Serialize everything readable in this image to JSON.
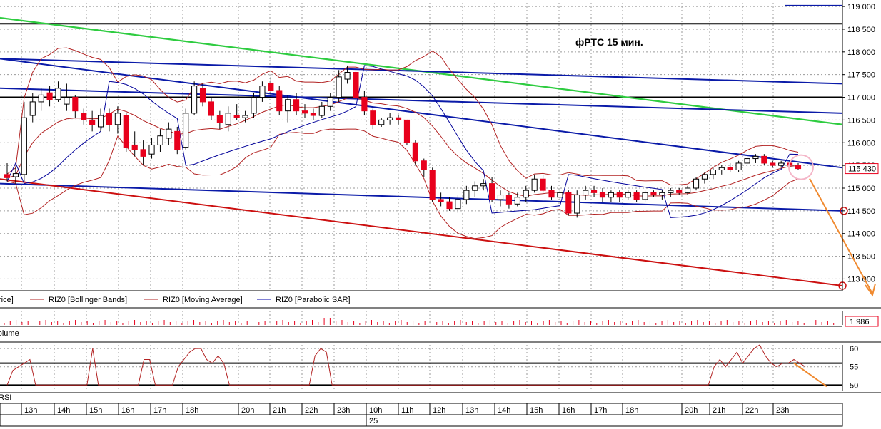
{
  "chart_data": {
    "type": "candlestick",
    "title": "фРТС   15 мин.",
    "price_axis": {
      "ticks": [
        "119 000",
        "118 500",
        "118 000",
        "117 500",
        "117 000",
        "116 500",
        "116 000",
        "115 500",
        "115 000",
        "114 500",
        "114 000",
        "113 500",
        "113 000"
      ],
      "tick_values": [
        119000,
        118500,
        118000,
        117500,
        117000,
        116500,
        116000,
        115500,
        115000,
        114500,
        114000,
        113500,
        113000
      ],
      "ylim": [
        112740,
        119080
      ],
      "last_price_label": "115 430",
      "last_price": 115430
    },
    "legend": [
      {
        "label": "Price",
        "color": "#000000"
      },
      {
        "label": "RIZ0 [Bollinger Bands]",
        "color": "#b22222"
      },
      {
        "label": "RIZ0 [Moving Average]",
        "color": "#b22222"
      },
      {
        "label": "RIZ0 [Parabolic SAR]",
        "color": "#0000aa"
      }
    ],
    "candles": [
      {
        "o": 115300,
        "h": 115550,
        "l": 115150,
        "c": 115230
      },
      {
        "o": 115250,
        "h": 115450,
        "l": 115100,
        "c": 115320
      },
      {
        "o": 115300,
        "h": 116900,
        "l": 115150,
        "c": 116550
      },
      {
        "o": 116600,
        "h": 117100,
        "l": 116450,
        "c": 116900
      },
      {
        "o": 116900,
        "h": 117200,
        "l": 116700,
        "c": 117050
      },
      {
        "o": 117100,
        "h": 117250,
        "l": 116800,
        "c": 116950
      },
      {
        "o": 116950,
        "h": 117350,
        "l": 116900,
        "c": 117200
      },
      {
        "o": 116850,
        "h": 117300,
        "l": 116700,
        "c": 117000
      },
      {
        "o": 117000,
        "h": 117050,
        "l": 116550,
        "c": 116700
      },
      {
        "o": 116650,
        "h": 116750,
        "l": 116400,
        "c": 116500
      },
      {
        "o": 116500,
        "h": 116700,
        "l": 116250,
        "c": 116400
      },
      {
        "o": 116350,
        "h": 116750,
        "l": 116250,
        "c": 116600
      },
      {
        "o": 116650,
        "h": 116750,
        "l": 116250,
        "c": 116400
      },
      {
        "o": 116400,
        "h": 116800,
        "l": 116200,
        "c": 116650
      },
      {
        "o": 116600,
        "h": 116650,
        "l": 115800,
        "c": 115900
      },
      {
        "o": 115950,
        "h": 116250,
        "l": 115700,
        "c": 115850
      },
      {
        "o": 115850,
        "h": 116050,
        "l": 115500,
        "c": 115700
      },
      {
        "o": 115750,
        "h": 116100,
        "l": 115650,
        "c": 115950
      },
      {
        "o": 115950,
        "h": 116300,
        "l": 115800,
        "c": 116150
      },
      {
        "o": 116100,
        "h": 116450,
        "l": 115950,
        "c": 116300
      },
      {
        "o": 116250,
        "h": 116350,
        "l": 115750,
        "c": 115850
      },
      {
        "o": 115900,
        "h": 116750,
        "l": 115850,
        "c": 116650
      },
      {
        "o": 116650,
        "h": 117350,
        "l": 116600,
        "c": 117250
      },
      {
        "o": 117200,
        "h": 117300,
        "l": 116800,
        "c": 116900
      },
      {
        "o": 116900,
        "h": 117000,
        "l": 116500,
        "c": 116600
      },
      {
        "o": 116600,
        "h": 116700,
        "l": 116300,
        "c": 116450
      },
      {
        "o": 116400,
        "h": 116800,
        "l": 116250,
        "c": 116650
      },
      {
        "o": 116600,
        "h": 116850,
        "l": 116500,
        "c": 116550
      },
      {
        "o": 116550,
        "h": 116700,
        "l": 116450,
        "c": 116600
      },
      {
        "o": 116650,
        "h": 117100,
        "l": 116550,
        "c": 117000
      },
      {
        "o": 117000,
        "h": 117350,
        "l": 116900,
        "c": 117250
      },
      {
        "o": 117300,
        "h": 117450,
        "l": 117000,
        "c": 117150
      },
      {
        "o": 117150,
        "h": 117250,
        "l": 116600,
        "c": 116700
      },
      {
        "o": 116700,
        "h": 117050,
        "l": 116450,
        "c": 116950
      },
      {
        "o": 116950,
        "h": 117100,
        "l": 116600,
        "c": 116700
      },
      {
        "o": 116700,
        "h": 116850,
        "l": 116550,
        "c": 116650
      },
      {
        "o": 116650,
        "h": 116750,
        "l": 116500,
        "c": 116600
      },
      {
        "o": 116600,
        "h": 116900,
        "l": 116550,
        "c": 116800
      },
      {
        "o": 116800,
        "h": 117100,
        "l": 116700,
        "c": 117000
      },
      {
        "o": 117000,
        "h": 117600,
        "l": 116900,
        "c": 117450
      },
      {
        "o": 117400,
        "h": 117700,
        "l": 117300,
        "c": 117550
      },
      {
        "o": 117550,
        "h": 117650,
        "l": 116900,
        "c": 117000
      },
      {
        "o": 117000,
        "h": 117150,
        "l": 116600,
        "c": 116700
      },
      {
        "o": 116700,
        "h": 116750,
        "l": 116300,
        "c": 116400
      },
      {
        "o": 116400,
        "h": 116550,
        "l": 116350,
        "c": 116500
      },
      {
        "o": 116500,
        "h": 116650,
        "l": 116400,
        "c": 116550
      },
      {
        "o": 116550,
        "h": 116600,
        "l": 116400,
        "c": 116500
      },
      {
        "o": 116500,
        "h": 116500,
        "l": 115950,
        "c": 116000
      },
      {
        "o": 116000,
        "h": 116050,
        "l": 115500,
        "c": 115600
      },
      {
        "o": 115600,
        "h": 115650,
        "l": 115250,
        "c": 115400
      },
      {
        "o": 115400,
        "h": 115450,
        "l": 114700,
        "c": 114750
      },
      {
        "o": 114750,
        "h": 114900,
        "l": 114600,
        "c": 114700
      },
      {
        "o": 114700,
        "h": 114800,
        "l": 114500,
        "c": 114550
      },
      {
        "o": 114550,
        "h": 114850,
        "l": 114450,
        "c": 114750
      },
      {
        "o": 114750,
        "h": 115050,
        "l": 114650,
        "c": 114950
      },
      {
        "o": 114950,
        "h": 115150,
        "l": 114800,
        "c": 115050
      },
      {
        "o": 115050,
        "h": 115200,
        "l": 114950,
        "c": 115100
      },
      {
        "o": 115100,
        "h": 115250,
        "l": 114700,
        "c": 114750
      },
      {
        "o": 114750,
        "h": 114950,
        "l": 114600,
        "c": 114850
      },
      {
        "o": 114850,
        "h": 114900,
        "l": 114550,
        "c": 114650
      },
      {
        "o": 114650,
        "h": 114900,
        "l": 114600,
        "c": 114800
      },
      {
        "o": 114800,
        "h": 115050,
        "l": 114700,
        "c": 114950
      },
      {
        "o": 114950,
        "h": 115300,
        "l": 114900,
        "c": 115200
      },
      {
        "o": 115200,
        "h": 115300,
        "l": 114900,
        "c": 114950
      },
      {
        "o": 114950,
        "h": 115050,
        "l": 114750,
        "c": 114800
      },
      {
        "o": 114800,
        "h": 114950,
        "l": 114750,
        "c": 114900
      },
      {
        "o": 114900,
        "h": 114950,
        "l": 114400,
        "c": 114450
      },
      {
        "o": 114450,
        "h": 114950,
        "l": 114350,
        "c": 114850
      },
      {
        "o": 114850,
        "h": 115050,
        "l": 114750,
        "c": 114950
      },
      {
        "o": 114950,
        "h": 115050,
        "l": 114800,
        "c": 114900
      },
      {
        "o": 114900,
        "h": 115000,
        "l": 114700,
        "c": 114800
      },
      {
        "o": 114800,
        "h": 114950,
        "l": 114700,
        "c": 114900
      },
      {
        "o": 114900,
        "h": 114950,
        "l": 114700,
        "c": 114800
      },
      {
        "o": 114800,
        "h": 114950,
        "l": 114750,
        "c": 114900
      },
      {
        "o": 114900,
        "h": 114950,
        "l": 114700,
        "c": 114750
      },
      {
        "o": 114750,
        "h": 114950,
        "l": 114700,
        "c": 114900
      },
      {
        "o": 114900,
        "h": 114950,
        "l": 114800,
        "c": 114850
      },
      {
        "o": 114850,
        "h": 114950,
        "l": 114750,
        "c": 114900
      },
      {
        "o": 114900,
        "h": 115000,
        "l": 114800,
        "c": 114950
      },
      {
        "o": 114950,
        "h": 115000,
        "l": 114850,
        "c": 114900
      },
      {
        "o": 114900,
        "h": 115050,
        "l": 114850,
        "c": 115000
      },
      {
        "o": 115000,
        "h": 115250,
        "l": 114950,
        "c": 115200
      },
      {
        "o": 115200,
        "h": 115350,
        "l": 115100,
        "c": 115300
      },
      {
        "o": 115300,
        "h": 115450,
        "l": 115200,
        "c": 115400
      },
      {
        "o": 115400,
        "h": 115500,
        "l": 115300,
        "c": 115450
      },
      {
        "o": 115450,
        "h": 115550,
        "l": 115350,
        "c": 115400
      },
      {
        "o": 115400,
        "h": 115600,
        "l": 115350,
        "c": 115550
      },
      {
        "o": 115550,
        "h": 115700,
        "l": 115450,
        "c": 115650
      },
      {
        "o": 115650,
        "h": 115750,
        "l": 115550,
        "c": 115700
      },
      {
        "o": 115700,
        "h": 115750,
        "l": 115500,
        "c": 115550
      },
      {
        "o": 115550,
        "h": 115600,
        "l": 115450,
        "c": 115500
      },
      {
        "o": 115500,
        "h": 115600,
        "l": 115450,
        "c": 115550
      },
      {
        "o": 115550,
        "h": 115600,
        "l": 115450,
        "c": 115500
      },
      {
        "o": 115500,
        "h": 115550,
        "l": 115400,
        "c": 115430
      }
    ],
    "trendlines_blue": [
      {
        "from": [
          0,
          117850
        ],
        "to": [
          "end",
          117300
        ]
      },
      {
        "from": [
          0,
          117200
        ],
        "to": [
          "end",
          116650
        ]
      },
      {
        "from": [
          0,
          117850
        ],
        "to": [
          "end",
          115450
        ]
      },
      {
        "from": [
          0,
          115100
        ],
        "to": [
          "end",
          114500
        ]
      },
      {
        "from": [
          "top-right-start",
          119050
        ],
        "to": [
          "end",
          119050
        ]
      }
    ],
    "trendline_green": {
      "from": [
        0,
        118750
      ],
      "to": [
        "end",
        116400
      ]
    },
    "trendline_red": {
      "from": [
        0,
        115200
      ],
      "to": [
        "end",
        112850
      ]
    },
    "horizontal_lines_black": [
      118620,
      117000
    ],
    "volume_axis": {
      "last_label": "1 986"
    },
    "volume_legend": "Volume",
    "rsi_axis": {
      "ticks": [
        "60",
        "55",
        "50"
      ],
      "tick_values": [
        60,
        55,
        50
      ],
      "ylim": [
        48.5,
        61
      ]
    },
    "rsi_legend": "RSI",
    "rsi_levels": [
      56,
      50
    ],
    "rsi_values": [
      50,
      54,
      55,
      56,
      57,
      50,
      50,
      50,
      50,
      50,
      50,
      50,
      50,
      50,
      50,
      60,
      50,
      50,
      50,
      50,
      50,
      50,
      50,
      50,
      57,
      57,
      50,
      50,
      50,
      50,
      55,
      57,
      59,
      60,
      60,
      57,
      56,
      58,
      56,
      50,
      50,
      50,
      50,
      50,
      50,
      50,
      50,
      50,
      50,
      50,
      50,
      50,
      50,
      50,
      58,
      60,
      59,
      50,
      50,
      50,
      50,
      50,
      50,
      50,
      50,
      50,
      50,
      50,
      50,
      50,
      50,
      50,
      50,
      50,
      50,
      50,
      50,
      50,
      50,
      50,
      50,
      50,
      50,
      50,
      50,
      50,
      50,
      50,
      50,
      50,
      50,
      50,
      50,
      50,
      50,
      50,
      50,
      50,
      50,
      50,
      50,
      50,
      50,
      50,
      50,
      50,
      50,
      50,
      50,
      50,
      50,
      50,
      50,
      50,
      50,
      50,
      50,
      50,
      50,
      50,
      50,
      50,
      50,
      50,
      55,
      57,
      55,
      57,
      59,
      56,
      58,
      60,
      61,
      58,
      56,
      55,
      56,
      56,
      57,
      56,
      55
    ],
    "time_labels": [
      "13h",
      "14h",
      "15h",
      "16h",
      "17h",
      "18h",
      "20h",
      "21h",
      "22h",
      "23h",
      "10h",
      "11h",
      "12h",
      "13h",
      "14h",
      "15h",
      "16h",
      "17h",
      "18h",
      "20h",
      "21h",
      "22h",
      "23h"
    ],
    "date_label": "25",
    "colors": {
      "bear": "#e8001c",
      "bull": "#ffffff",
      "wick": "#000000",
      "bb": "#b22222",
      "sar": "#000099",
      "trend_blue": "#0a1aa8",
      "trend_green": "#2ecc40",
      "trend_red": "#cc1010",
      "arrow": "#f08a30",
      "circle": "#f4b6c8"
    }
  }
}
